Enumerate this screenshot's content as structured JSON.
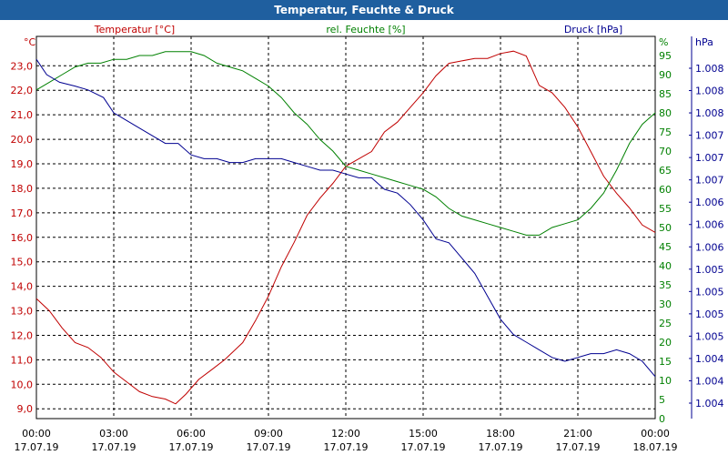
{
  "window": {
    "title": "Temperatur, Feuchte & Druck"
  },
  "colors": {
    "temperature": "#c00000",
    "humidity": "#008000",
    "pressure": "#000090",
    "grid": "#000000",
    "titlebar": "#1f5f9f"
  },
  "chart_data": {
    "type": "line",
    "title": "Temperatur, Feuchte & Druck",
    "x_ticks": [
      {
        "time": "00:00",
        "date": "17.07.19"
      },
      {
        "time": "03:00",
        "date": "17.07.19"
      },
      {
        "time": "06:00",
        "date": "17.07.19"
      },
      {
        "time": "09:00",
        "date": "17.07.19"
      },
      {
        "time": "12:00",
        "date": "17.07.19"
      },
      {
        "time": "15:00",
        "date": "17.07.19"
      },
      {
        "time": "18:00",
        "date": "17.07.19"
      },
      {
        "time": "21:00",
        "date": "17.07.19"
      },
      {
        "time": "00:00",
        "date": "18.07.19"
      }
    ],
    "x_range_hours": [
      0,
      24
    ],
    "axes": {
      "temperature": {
        "label": "Temperatur [°C]",
        "unit": "°C",
        "range": [
          8.6,
          24.2
        ],
        "ticks": [
          "9,0",
          "10,0",
          "11,0",
          "12,0",
          "13,0",
          "14,0",
          "15,0",
          "16,0",
          "17,0",
          "18,0",
          "19,0",
          "20,0",
          "21,0",
          "22,0",
          "23,0"
        ]
      },
      "humidity": {
        "label": "rel. Feuchte [%]",
        "unit": "%",
        "range": [
          0,
          100
        ],
        "ticks": [
          "0",
          "5",
          "10",
          "15",
          "20",
          "25",
          "30",
          "35",
          "40",
          "45",
          "50",
          "55",
          "60",
          "65",
          "70",
          "75",
          "80",
          "85",
          "90",
          "95"
        ]
      },
      "pressure": {
        "label": "Druck [hPa]",
        "unit": "hPa",
        "range": [
          1003.5,
          1008.5
        ],
        "ticks": [
          "1.004",
          "1.004",
          "1.004",
          "1.005",
          "1.005",
          "1.005",
          "1.005",
          "1.006",
          "1.006",
          "1.006",
          "1.007",
          "1.007",
          "1.007",
          "1.008",
          "1.008",
          "1.008"
        ]
      }
    },
    "series": [
      {
        "name": "Temperatur",
        "axis": "temperature",
        "x": [
          0,
          0.5,
          1,
          1.5,
          2,
          2.5,
          3,
          3.5,
          4,
          4.5,
          5,
          5.4,
          5.8,
          6.3,
          6.8,
          7.3,
          8,
          8.5,
          9,
          9.5,
          10,
          10.5,
          11,
          11.5,
          12,
          12.5,
          13,
          13.5,
          14,
          14.5,
          15,
          15.5,
          16,
          16.5,
          17,
          17.5,
          18,
          18.5,
          19,
          19.5,
          20,
          20.5,
          21,
          21.5,
          22,
          22.5,
          23,
          23.5,
          24
        ],
        "y": [
          13.5,
          13.0,
          12.3,
          11.7,
          11.5,
          11.1,
          10.5,
          10.1,
          9.7,
          9.5,
          9.4,
          9.2,
          9.6,
          10.2,
          10.6,
          11.0,
          11.7,
          12.6,
          13.6,
          14.8,
          15.8,
          16.9,
          17.6,
          18.2,
          18.9,
          19.2,
          19.5,
          20.3,
          20.7,
          21.3,
          21.9,
          22.6,
          23.1,
          23.2,
          23.3,
          23.3,
          23.5,
          23.6,
          23.4,
          22.2,
          21.9,
          21.3,
          20.5,
          19.5,
          18.5,
          17.8,
          17.2,
          16.5,
          16.2
        ]
      },
      {
        "name": "rel. Feuchte",
        "axis": "humidity",
        "x": [
          0,
          0.5,
          1,
          1.5,
          2,
          2.5,
          3,
          3.5,
          4,
          4.5,
          5,
          5.5,
          6,
          6.5,
          7,
          7.5,
          8,
          8.5,
          9,
          9.5,
          10,
          10.5,
          11,
          11.5,
          12,
          12.5,
          13,
          13.5,
          14,
          14.5,
          15,
          15.5,
          16,
          16.5,
          17,
          17.5,
          18,
          18.5,
          19,
          19.5,
          20,
          20.5,
          21,
          21.5,
          22,
          22.5,
          23,
          23.5,
          24
        ],
        "y": [
          86,
          88,
          90,
          92,
          93,
          93,
          94,
          94,
          95,
          95,
          96,
          96,
          96,
          95,
          93,
          92,
          91,
          89,
          87,
          84,
          80,
          77,
          73,
          70,
          66,
          65,
          64,
          63,
          62,
          61,
          60,
          58,
          55,
          53,
          52,
          51,
          50,
          49,
          48,
          48,
          50,
          51,
          52,
          55,
          59,
          65,
          72,
          77,
          80
        ]
      },
      {
        "name": "Druck",
        "axis": "pressure",
        "x": [
          0,
          0.4,
          0.9,
          1.5,
          2,
          2.6,
          3,
          3.5,
          4,
          4.5,
          5,
          5.5,
          6,
          6.5,
          7,
          7.5,
          8,
          8.5,
          9,
          9.5,
          10,
          10.5,
          11,
          11.5,
          12,
          12.5,
          13,
          13.5,
          14,
          14.5,
          15,
          15.5,
          16,
          16.5,
          17,
          17.5,
          18,
          18.5,
          19,
          19.5,
          20,
          20.5,
          21,
          21.5,
          22,
          22.5,
          23,
          23.5,
          24
        ],
        "y": [
          1008.2,
          1008.0,
          1007.9,
          1007.85,
          1007.8,
          1007.7,
          1007.5,
          1007.4,
          1007.3,
          1007.2,
          1007.1,
          1007.1,
          1006.95,
          1006.9,
          1006.9,
          1006.85,
          1006.85,
          1006.9,
          1006.9,
          1006.9,
          1006.85,
          1006.8,
          1006.75,
          1006.75,
          1006.7,
          1006.65,
          1006.65,
          1006.5,
          1006.45,
          1006.3,
          1006.1,
          1005.85,
          1005.8,
          1005.6,
          1005.4,
          1005.1,
          1004.8,
          1004.6,
          1004.5,
          1004.4,
          1004.3,
          1004.25,
          1004.3,
          1004.35,
          1004.35,
          1004.4,
          1004.35,
          1004.25,
          1004.05
        ]
      }
    ]
  }
}
